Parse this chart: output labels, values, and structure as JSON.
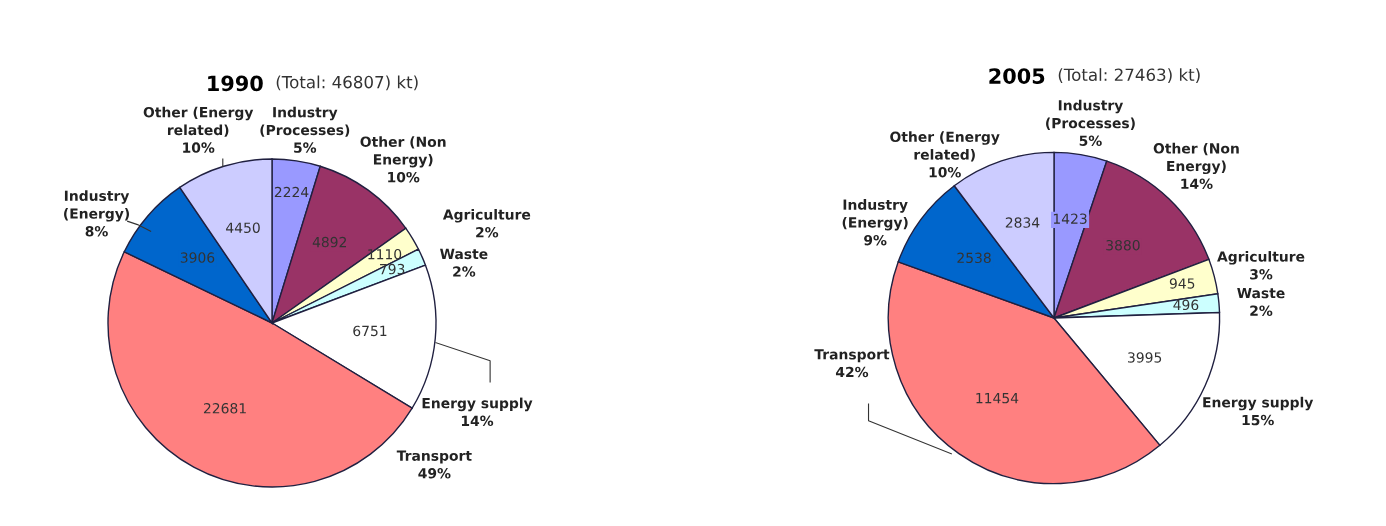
{
  "chart_data": [
    {
      "type": "pie",
      "title": "1990",
      "subtitle": "(Total: 46807) kt)",
      "categories": [
        "Industry\n(Processes)\n5%",
        "Other (Non\nEnergy)\n10%",
        "Agriculture\n2%",
        "Waste\n2%",
        "Energy supply\n14%",
        "Transport\n49%",
        "Industry\n(Energy)\n8%",
        "Other (Energy\nrelated)\n10%"
      ],
      "values": [
        2224,
        4892,
        1110,
        793,
        6751,
        22681,
        3906,
        4450
      ],
      "colors": [
        "#9999ff",
        "#993366",
        "#ffffcc",
        "#ccffff",
        "#ffffff",
        "#ff8080",
        "#0066cc",
        "#ccccff"
      ],
      "data_labels": true
    },
    {
      "type": "pie",
      "title": "2005",
      "subtitle": "(Total: 27463) kt)",
      "categories": [
        "Industry\n(Processes)\n5%",
        "Other (Non\nEnergy)\n14%",
        "Agriculture\n3%",
        "Waste\n2%",
        "Energy supply\n15%",
        "Transport\n42%",
        "Industry\n(Energy)\n9%",
        "Other (Energy\nrelated)\n10%"
      ],
      "values": [
        1423,
        3880,
        945,
        496,
        3995,
        11454,
        2538,
        2834
      ],
      "colors": [
        "#9999ff",
        "#993366",
        "#ffffcc",
        "#ccffff",
        "#ffffff",
        "#ff8080",
        "#0066cc",
        "#ccccff"
      ],
      "data_labels": true
    }
  ]
}
